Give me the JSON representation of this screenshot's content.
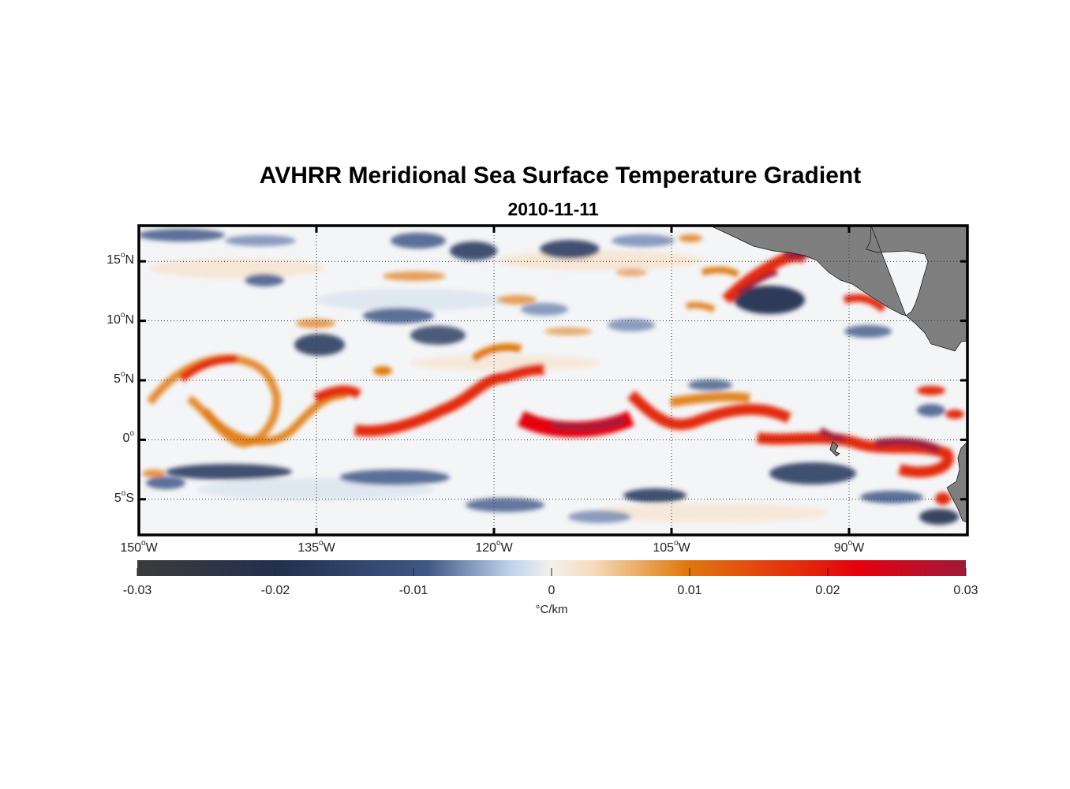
{
  "figure": {
    "title": "AVHRR Meridional Sea Surface Temperature Gradient",
    "subtitle": "2010-11-11"
  },
  "map": {
    "projection": "equirectangular",
    "lon_range": [
      -150,
      -80
    ],
    "lat_range": [
      -8,
      18
    ],
    "grid": "dotted",
    "land_color": "#7f7f7f",
    "lat_ticks": [
      {
        "value": 15,
        "num": "15",
        "hemi": "N"
      },
      {
        "value": 10,
        "num": "10",
        "hemi": "N"
      },
      {
        "value": 5,
        "num": "5",
        "hemi": "N"
      },
      {
        "value": 0,
        "num": "0",
        "hemi": ""
      },
      {
        "value": -5,
        "num": "5",
        "hemi": "S"
      }
    ],
    "lon_ticks": [
      {
        "value": -150,
        "num": "150",
        "hemi": "W"
      },
      {
        "value": -135,
        "num": "135",
        "hemi": "W"
      },
      {
        "value": -120,
        "num": "120",
        "hemi": "W"
      },
      {
        "value": -105,
        "num": "105",
        "hemi": "W"
      },
      {
        "value": -90,
        "num": "90",
        "hemi": "W"
      }
    ]
  },
  "colorbar": {
    "range": [
      -0.03,
      0.03
    ],
    "ticks": [
      "-0.03",
      "-0.02",
      "-0.01",
      "0",
      "0.01",
      "0.02",
      "0.03"
    ],
    "unit": "°C/km",
    "colors": [
      "#3b3b3b",
      "#22304f",
      "#3f5787",
      "#bfd3ec",
      "#f3eadf",
      "#f6d8b0",
      "#e07a10",
      "#e32b0c",
      "#e4000e",
      "#9e1a3a"
    ]
  }
}
